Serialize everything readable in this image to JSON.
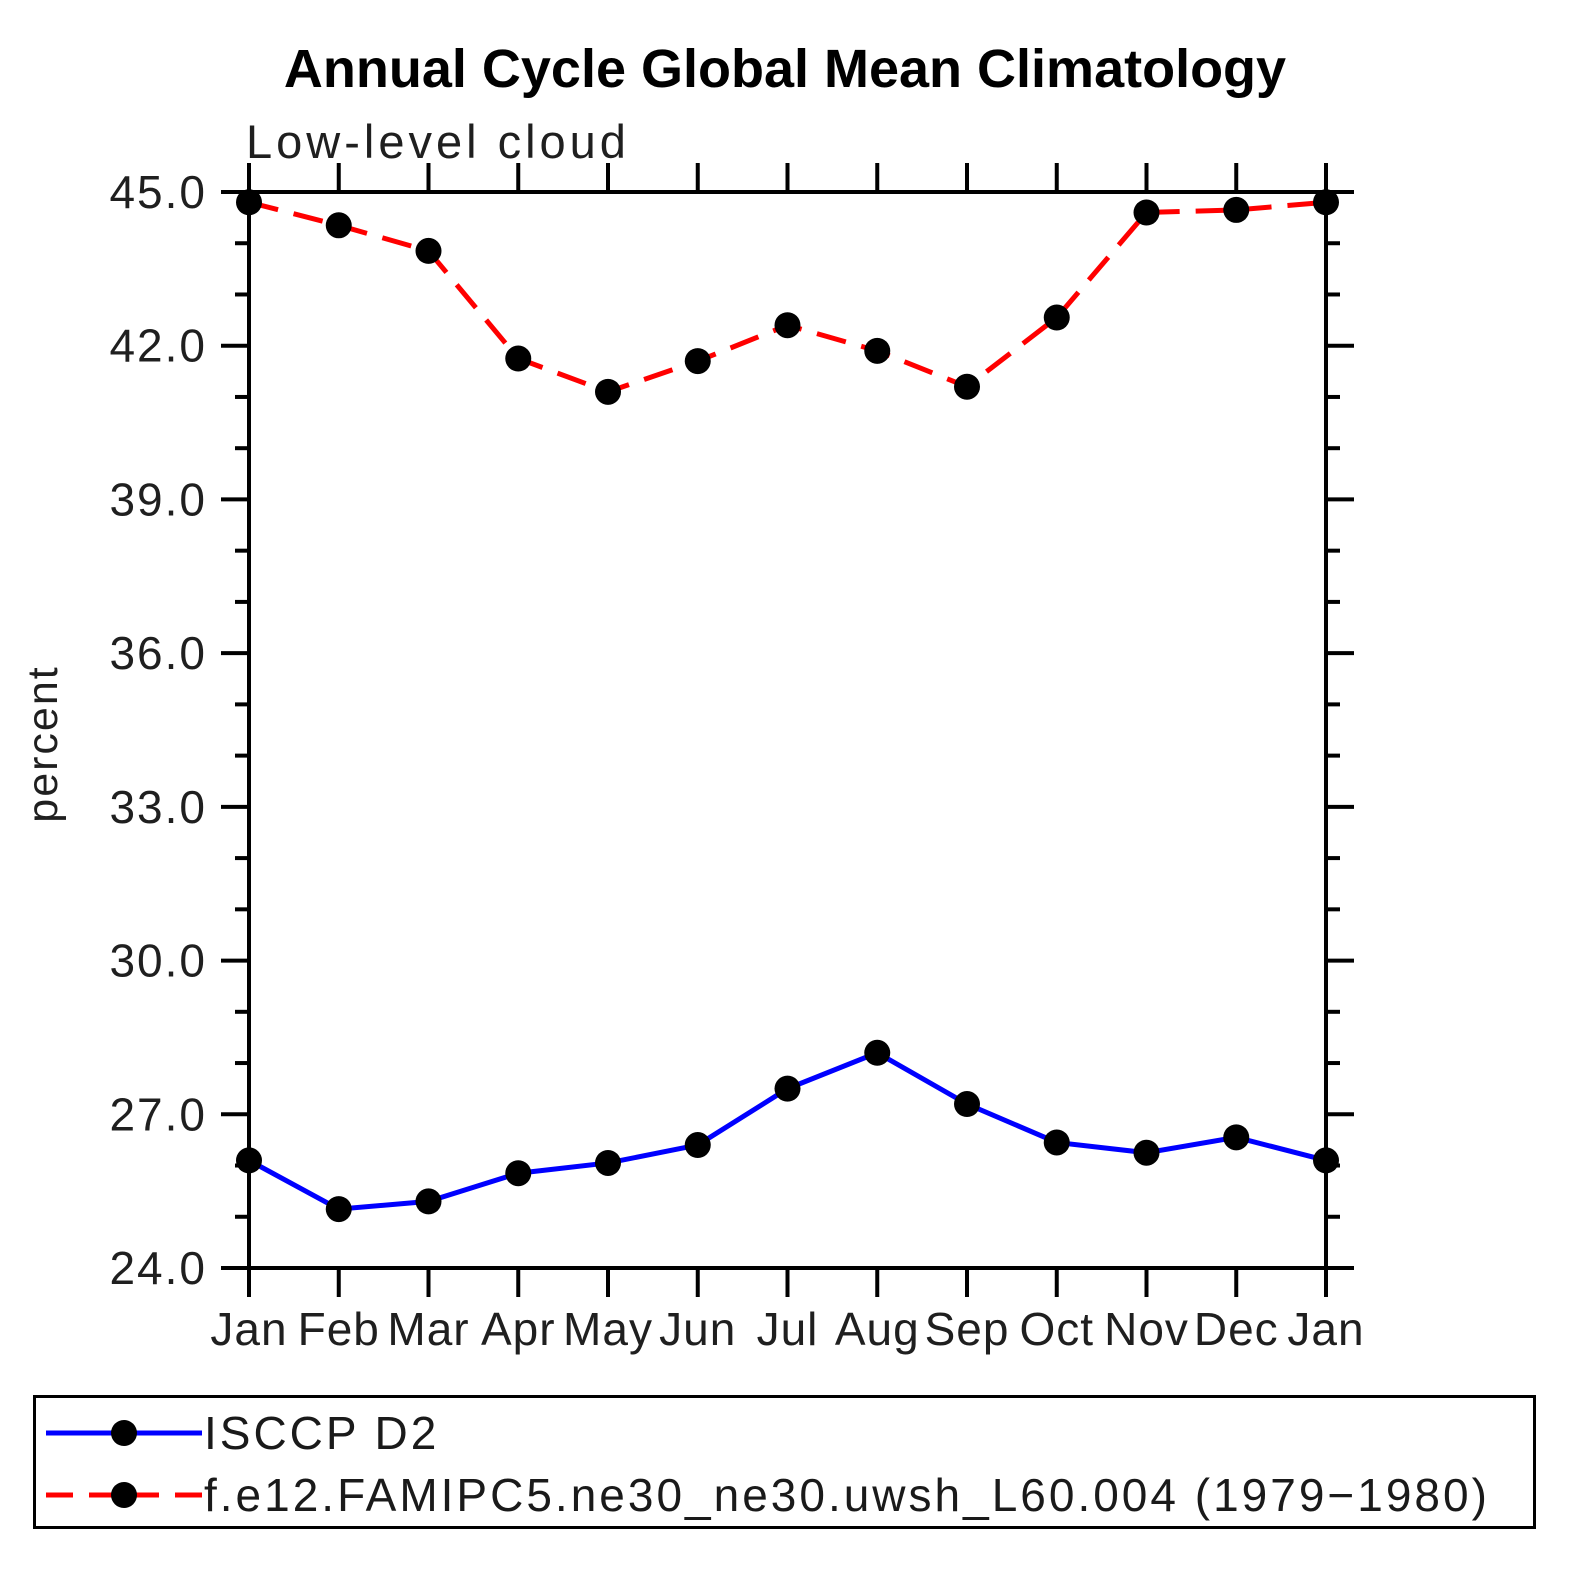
{
  "header": {
    "title": "Annual Cycle Global Mean Climatology",
    "subtitle": "Low-level cloud"
  },
  "chart_data": {
    "type": "line",
    "title": "Annual Cycle Global Mean Climatology",
    "subtitle": "Low-level cloud",
    "xlabel": "",
    "ylabel": "percent",
    "x_tick_labels": [
      "Jan",
      "Feb",
      "Mar",
      "Apr",
      "May",
      "Jun",
      "Jul",
      "Aug",
      "Sep",
      "Oct",
      "Nov",
      "Dec",
      "Jan"
    ],
    "y_ticks": [
      24,
      27,
      30,
      33,
      36,
      39,
      42,
      45
    ],
    "y_tick_labels": [
      "24.0",
      "27.0",
      "30.0",
      "33.0",
      "36.0",
      "39.0",
      "42.0",
      "45.0"
    ],
    "y_minor_step": 1.0,
    "ylim": [
      24.0,
      45.0
    ],
    "grid": false,
    "legend_position": "bottom-box",
    "colors": {
      "axis": "#000000",
      "marker": "#000000",
      "series1": "#0000ff",
      "series2": "#ff0000"
    },
    "series": [
      {
        "name": "ISCCP D2",
        "color": "#0000ff",
        "line_style": "solid",
        "marker": "circle",
        "marker_color": "#000000",
        "values": [
          26.1,
          25.15,
          25.3,
          25.85,
          26.05,
          26.4,
          27.5,
          28.2,
          27.2,
          26.45,
          26.25,
          26.55,
          26.1
        ]
      },
      {
        "name": "f.e12.FAMIPC5.ne30_ne30.uwsh_L60.004 (1979−1980)",
        "color": "#ff0000",
        "line_style": "dashed",
        "marker": "circle",
        "marker_color": "#000000",
        "values": [
          44.8,
          44.35,
          43.85,
          41.75,
          41.1,
          41.7,
          42.4,
          41.9,
          41.2,
          42.55,
          44.6,
          44.65,
          44.8
        ]
      }
    ]
  }
}
